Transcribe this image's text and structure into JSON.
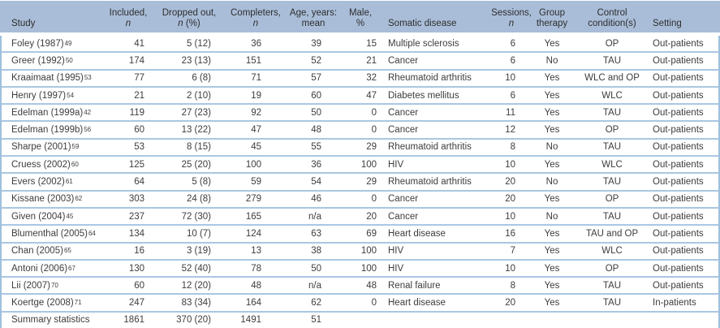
{
  "colors": {
    "header_bg": "#a9bdd8",
    "row_separator": "#aac7e2",
    "side_rule": "#9fc0de",
    "text": "#3d3d3d"
  },
  "table": {
    "columns": [
      {
        "id": "study",
        "line1": "",
        "line2": [
          {
            "t": "Study",
            "i": false
          }
        ]
      },
      {
        "id": "included",
        "line1": "Included,",
        "line2": [
          {
            "t": "n",
            "i": true
          }
        ]
      },
      {
        "id": "dropped",
        "line1": "Dropped out,",
        "line2": [
          {
            "t": "n",
            "i": true
          },
          {
            "t": " (%)",
            "i": false
          }
        ]
      },
      {
        "id": "completers",
        "line1": "Completers,",
        "line2": [
          {
            "t": "n",
            "i": true
          }
        ]
      },
      {
        "id": "age",
        "line1": "Age, years:",
        "line2": [
          {
            "t": "mean",
            "i": false
          }
        ]
      },
      {
        "id": "male",
        "line1": "Male,",
        "line2": [
          {
            "t": "%",
            "i": false
          }
        ]
      },
      {
        "id": "disease",
        "line1": "",
        "line2": [
          {
            "t": "Somatic disease",
            "i": false
          }
        ]
      },
      {
        "id": "sessions",
        "line1": "Sessions,",
        "line2": [
          {
            "t": "n",
            "i": true
          }
        ]
      },
      {
        "id": "group",
        "line1": "Group",
        "line2": [
          {
            "t": "therapy",
            "i": false
          }
        ]
      },
      {
        "id": "control",
        "line1": "Control",
        "line2": [
          {
            "t": "condition(s)",
            "i": false
          }
        ]
      },
      {
        "id": "setting",
        "line1": "",
        "line2": [
          {
            "t": "Setting",
            "i": false
          }
        ]
      }
    ],
    "rows": [
      {
        "study": "Foley (1987)",
        "ref": "49",
        "included": "41",
        "dropped": "5 (12)",
        "completers": "36",
        "age": "39",
        "male": "15",
        "disease": "Multiple sclerosis",
        "sessions": "6",
        "group": "Yes",
        "control": "OP",
        "setting": "Out-patients"
      },
      {
        "study": "Greer (1992)",
        "ref": "50",
        "included": "174",
        "dropped": "23 (13)",
        "completers": "151",
        "age": "52",
        "male": "21",
        "disease": "Cancer",
        "sessions": "6",
        "group": "No",
        "control": "TAU",
        "setting": "Out-patients"
      },
      {
        "study": "Kraaimaat (1995)",
        "ref": "53",
        "included": "77",
        "dropped": "6 (8)",
        "completers": "71",
        "age": "57",
        "male": "32",
        "disease": "Rheumatoid arthritis",
        "sessions": "10",
        "group": "Yes",
        "control": "WLC and OP",
        "setting": "Out-patients"
      },
      {
        "study": "Henry (1997)",
        "ref": "54",
        "included": "21",
        "dropped": "2 (10)",
        "completers": "19",
        "age": "60",
        "male": "47",
        "disease": "Diabetes mellitus",
        "sessions": "6",
        "group": "Yes",
        "control": "WLC",
        "setting": "Out-patients"
      },
      {
        "study": "Edelman (1999a)",
        "ref": "42",
        "included": "119",
        "dropped": "27 (23)",
        "completers": "92",
        "age": "50",
        "male": "0",
        "disease": "Cancer",
        "sessions": "11",
        "group": "Yes",
        "control": "TAU",
        "setting": "Out-patients"
      },
      {
        "study": "Edelman (1999b)",
        "ref": "56",
        "included": "60",
        "dropped": "13 (22)",
        "completers": "47",
        "age": "48",
        "male": "0",
        "disease": "Cancer",
        "sessions": "12",
        "group": "Yes",
        "control": "OP",
        "setting": "Out-patients"
      },
      {
        "study": "Sharpe (2001)",
        "ref": "59",
        "included": "53",
        "dropped": "8 (15)",
        "completers": "45",
        "age": "55",
        "male": "29",
        "disease": "Rheumatoid arthritis",
        "sessions": "8",
        "group": "No",
        "control": "TAU",
        "setting": "Out-patients"
      },
      {
        "study": "Cruess (2002)",
        "ref": "60",
        "included": "125",
        "dropped": "25 (20)",
        "completers": "100",
        "age": "36",
        "male": "100",
        "disease": "HIV",
        "sessions": "10",
        "group": "Yes",
        "control": "WLC",
        "setting": "Out-patients"
      },
      {
        "study": "Evers (2002)",
        "ref": "61",
        "included": "64",
        "dropped": "5 (8)",
        "completers": "59",
        "age": "54",
        "male": "29",
        "disease": "Rheumatoid arthritis",
        "sessions": "20",
        "group": "No",
        "control": "TAU",
        "setting": "Out-patients"
      },
      {
        "study": "Kissane (2003)",
        "ref": "62",
        "included": "303",
        "dropped": "24 (8)",
        "completers": "279",
        "age": "46",
        "male": "0",
        "disease": "Cancer",
        "sessions": "20",
        "group": "Yes",
        "control": "OP",
        "setting": "Out-patients"
      },
      {
        "study": "Given (2004)",
        "ref": "45",
        "included": "237",
        "dropped": "72 (30)",
        "completers": "165",
        "age": "n/a",
        "male": "20",
        "disease": "Cancer",
        "sessions": "10",
        "group": "No",
        "control": "TAU",
        "setting": "Out-patients"
      },
      {
        "study": "Blumenthal (2005)",
        "ref": "64",
        "included": "134",
        "dropped": "10 (7)",
        "completers": "124",
        "age": "63",
        "male": "69",
        "disease": "Heart disease",
        "sessions": "16",
        "group": "Yes",
        "control": "TAU and OP",
        "setting": "Out-patients"
      },
      {
        "study": "Chan (2005)",
        "ref": "65",
        "included": "16",
        "dropped": "3 (19)",
        "completers": "13",
        "age": "38",
        "male": "100",
        "disease": "HIV",
        "sessions": "7",
        "group": "Yes",
        "control": "WLC",
        "setting": "Out-patients"
      },
      {
        "study": "Antoni (2006)",
        "ref": "67",
        "included": "130",
        "dropped": "52 (40)",
        "completers": "78",
        "age": "50",
        "male": "100",
        "disease": "HIV",
        "sessions": "10",
        "group": "Yes",
        "control": "OP",
        "setting": "Out-patients"
      },
      {
        "study": "Lii (2007)",
        "ref": "70",
        "included": "60",
        "dropped": "12 (20)",
        "completers": "48",
        "age": "n/a",
        "male": "48",
        "disease": "Renal failure",
        "sessions": "8",
        "group": "Yes",
        "control": "TAU",
        "setting": "Out-patients"
      },
      {
        "study": "Koertge (2008)",
        "ref": "71",
        "included": "247",
        "dropped": "83 (34)",
        "completers": "164",
        "age": "62",
        "male": "0",
        "disease": "Heart disease",
        "sessions": "20",
        "group": "Yes",
        "control": "TAU",
        "setting": "In-patients"
      },
      {
        "study": "Summary statistics",
        "ref": "",
        "included": "1861",
        "dropped": "370 (20)",
        "completers": "1491",
        "age": "51",
        "male": "",
        "disease": "",
        "sessions": "",
        "group": "",
        "control": "",
        "setting": ""
      }
    ]
  }
}
